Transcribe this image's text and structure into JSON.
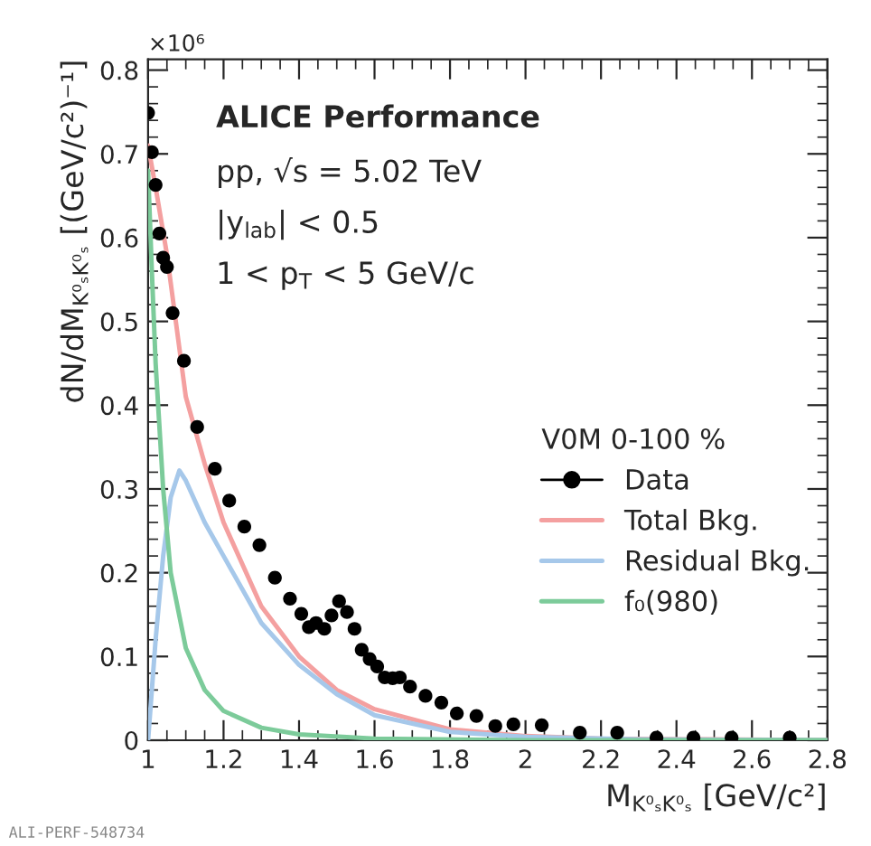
{
  "chart_data": {
    "type": "scatter",
    "xlabel": "M$_{K⁰ₛK⁰ₛ}$ [GeV/c²]",
    "ylabel": "dN/dM$_{K⁰ₛK⁰ₛ}$ [(GeV/c²)⁻¹]",
    "legend_title": "V0M 0-100 %",
    "annotations": [
      "×10⁶",
      "ALICE Performance",
      "pp, √s = 5.02 TeV",
      "|y$_{lab}$| < 0.5",
      "1 < p$_{T}$ < 5 GeV/c",
      "ALI-PERF-548734"
    ],
    "xlim": [
      1,
      2.8
    ],
    "xticks": [
      1,
      1.2,
      1.4,
      1.6,
      1.8,
      2,
      2.2,
      2.4,
      2.6,
      2.8
    ],
    "ylim": [
      0,
      0.813
    ],
    "yticks": [
      0,
      0.1,
      0.2,
      0.3,
      0.4,
      0.5,
      0.6,
      0.7,
      0.8
    ],
    "grid": false,
    "legend": "right",
    "series": [
      {
        "name": "Data",
        "color": "#000000",
        "marker": "circle",
        "x": [
          1.0,
          1.01,
          1.02,
          1.03,
          1.04,
          1.05,
          1.065,
          1.095,
          1.13,
          1.177,
          1.215,
          1.255,
          1.295,
          1.336,
          1.376,
          1.406,
          1.426,
          1.445,
          1.467,
          1.486,
          1.506,
          1.527,
          1.547,
          1.566,
          1.587,
          1.607,
          1.627,
          1.648,
          1.667,
          1.694,
          1.735,
          1.777,
          1.818,
          1.87,
          1.92,
          1.968,
          2.043,
          2.144,
          2.243,
          2.347,
          2.445,
          2.546,
          2.7
        ],
        "values": [
          0.749,
          0.702,
          0.663,
          0.605,
          0.576,
          0.565,
          0.51,
          0.453,
          0.374,
          0.324,
          0.286,
          0.255,
          0.233,
          0.194,
          0.169,
          0.151,
          0.135,
          0.14,
          0.133,
          0.149,
          0.166,
          0.153,
          0.133,
          0.108,
          0.097,
          0.088,
          0.075,
          0.074,
          0.075,
          0.064,
          0.053,
          0.045,
          0.032,
          0.029,
          0.017,
          0.019,
          0.018,
          0.009,
          0.009,
          0.003,
          0.003,
          0.003,
          0.003
        ]
      },
      {
        "name": "Total Bkg.",
        "type": "line",
        "color": "#f4a0a0",
        "marker": "none",
        "x": [
          1.0,
          1.02,
          1.05,
          1.1,
          1.15,
          1.2,
          1.3,
          1.4,
          1.5,
          1.6,
          1.8,
          2.0,
          2.2,
          2.5,
          2.8
        ],
        "values": [
          0.71,
          0.66,
          0.58,
          0.41,
          0.33,
          0.26,
          0.16,
          0.1,
          0.06,
          0.037,
          0.013,
          0.005,
          0.002,
          0.001,
          0.0
        ]
      },
      {
        "name": "Residual Bkg.",
        "type": "line",
        "color": "#a6c8ea",
        "marker": "none",
        "x": [
          1.0,
          1.02,
          1.04,
          1.06,
          1.083,
          1.1,
          1.15,
          1.2,
          1.3,
          1.4,
          1.5,
          1.6,
          1.8,
          2.0,
          2.3,
          2.8
        ],
        "values": [
          0.0,
          0.12,
          0.22,
          0.29,
          0.322,
          0.31,
          0.26,
          0.22,
          0.14,
          0.09,
          0.055,
          0.03,
          0.01,
          0.004,
          0.001,
          0.0
        ]
      },
      {
        "name": "f₀(980)",
        "type": "line",
        "color": "#7ccb9a",
        "marker": "none",
        "x": [
          1.0,
          1.01,
          1.02,
          1.04,
          1.06,
          1.1,
          1.15,
          1.2,
          1.3,
          1.4,
          1.6,
          2.0,
          2.8
        ],
        "values": [
          0.68,
          0.56,
          0.45,
          0.3,
          0.2,
          0.11,
          0.06,
          0.035,
          0.015,
          0.007,
          0.002,
          0.0,
          0.0
        ]
      }
    ]
  }
}
